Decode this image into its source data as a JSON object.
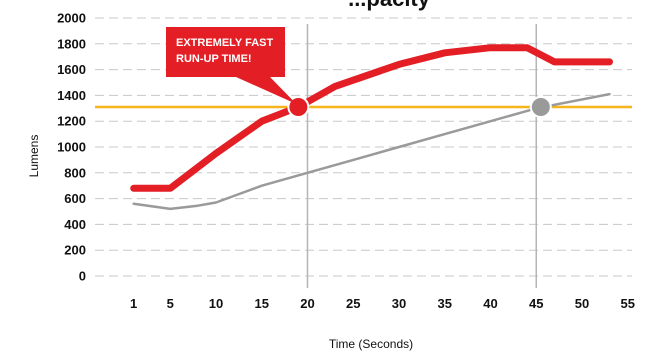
{
  "chart_data": {
    "type": "line",
    "title": "...pacity",
    "xlabel": "Time (Seconds)",
    "ylabel": "Lumens",
    "x_ticks": [
      "1",
      "5",
      "10",
      "15",
      "20",
      "25",
      "30",
      "35",
      "40",
      "45",
      "50",
      "55"
    ],
    "y_ticks": [
      "0",
      "200",
      "400",
      "600",
      "800",
      "1000",
      "1200",
      "1400",
      "1600",
      "1800",
      "2000"
    ],
    "ylim": [
      0,
      2000
    ],
    "grid": "horizontal dashed",
    "series": [
      {
        "color": "#e31e25",
        "x": [
          1,
          5,
          10,
          15,
          19,
          23,
          30,
          35,
          40,
          44,
          47,
          53
        ],
        "y": [
          680,
          680,
          950,
          1200,
          1310,
          1470,
          1640,
          1730,
          1770,
          1770,
          1660,
          1660
        ]
      },
      {
        "color": "#9a9a9a",
        "x": [
          1,
          5,
          8,
          10,
          15,
          20,
          25,
          30,
          35,
          40,
          45,
          53
        ],
        "y": [
          560,
          520,
          545,
          570,
          700,
          800,
          900,
          1000,
          1100,
          1200,
          1300,
          1410
        ]
      }
    ],
    "reference_line": {
      "y": 1310,
      "color": "#f7b51c"
    },
    "vertical_markers": [
      20,
      45
    ],
    "highlight_points": [
      {
        "x": 19,
        "y": 1310,
        "color": "#e31e25"
      },
      {
        "x": 45.5,
        "y": 1310,
        "color": "#9a9a9a"
      }
    ],
    "annotation": {
      "lines": [
        "EXTREMELY FAST",
        "RUN-UP TIME!"
      ],
      "color": "#e31e25"
    }
  }
}
